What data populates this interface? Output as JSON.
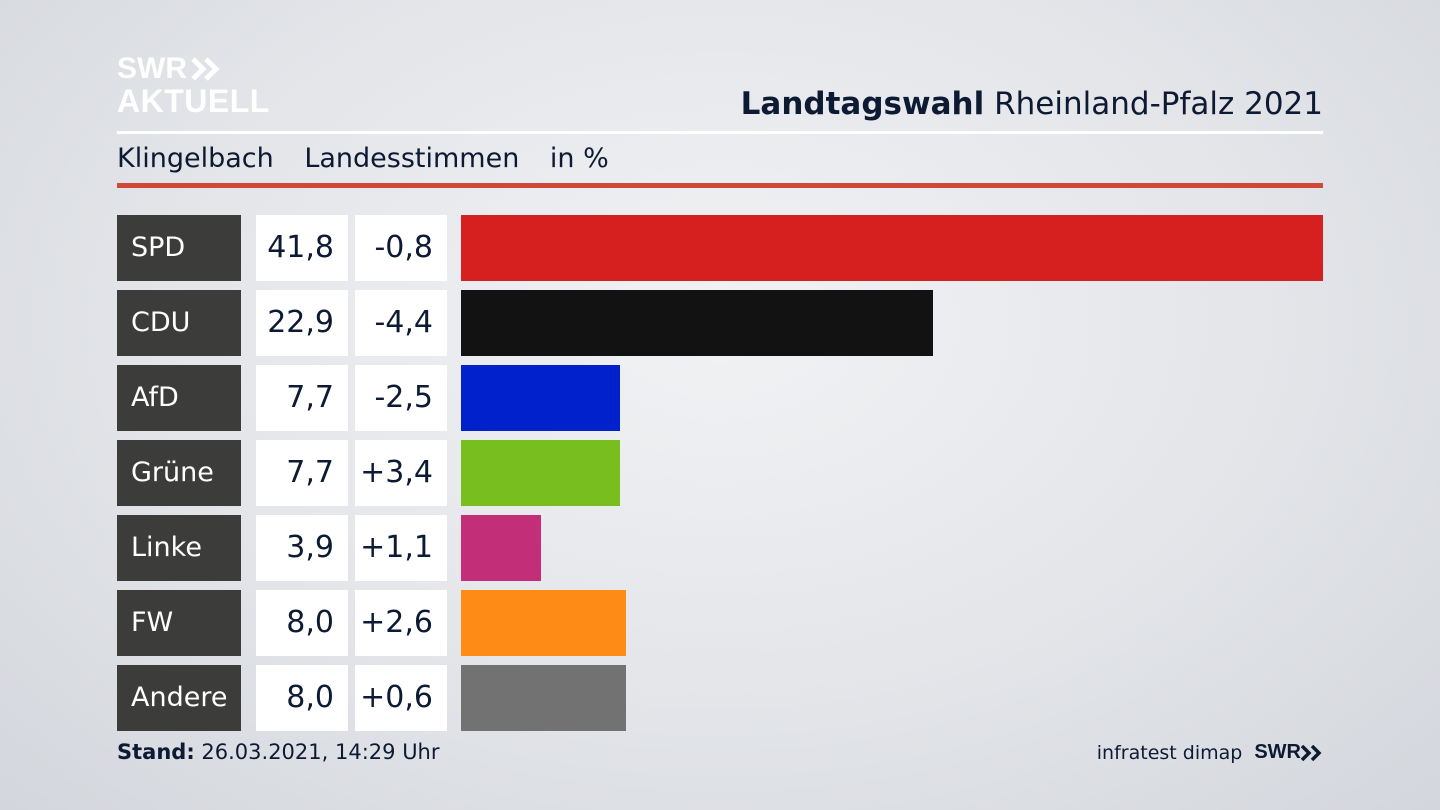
{
  "logo": {
    "line1": "SWR",
    "line2": "AKTUELL"
  },
  "headline": {
    "strong": "Landtagswahl",
    "rest": "Rheinland-Pfalz 2021"
  },
  "subline": {
    "place": "Klingelbach",
    "measure": "Landesstimmen",
    "unit": "in %"
  },
  "chart_data": {
    "type": "bar",
    "orientation": "horizontal",
    "title": "Landtagswahl Rheinland-Pfalz 2021",
    "subtitle": "Klingelbach   Landesstimmen   in %",
    "categories": [
      "SPD",
      "CDU",
      "AfD",
      "Grüne",
      "Linke",
      "FW",
      "Andere"
    ],
    "values": [
      41.8,
      22.9,
      7.7,
      7.7,
      3.9,
      8.0,
      8.0
    ],
    "value_labels": [
      "41,8",
      "22,9",
      "7,7",
      "7,7",
      "3,9",
      "8,0",
      "8,0"
    ],
    "change_labels": [
      "-0,8",
      "-4,4",
      "-2,5",
      "+3,4",
      "+1,1",
      "+2,6",
      "+0,6"
    ],
    "changes": [
      -0.8,
      -4.4,
      -2.5,
      3.4,
      1.1,
      2.6,
      0.6
    ],
    "colors": [
      "#d62020",
      "#121212",
      "#0021cc",
      "#78be1e",
      "#c22f78",
      "#ff8b17",
      "#727273"
    ],
    "xlim": [
      0,
      41.8
    ],
    "grid": false
  },
  "footer": {
    "stand_label": "Stand:",
    "stand_value": "26.03.2021, 14:29 Uhr",
    "source": "infratest dimap",
    "brand": "SWR"
  }
}
